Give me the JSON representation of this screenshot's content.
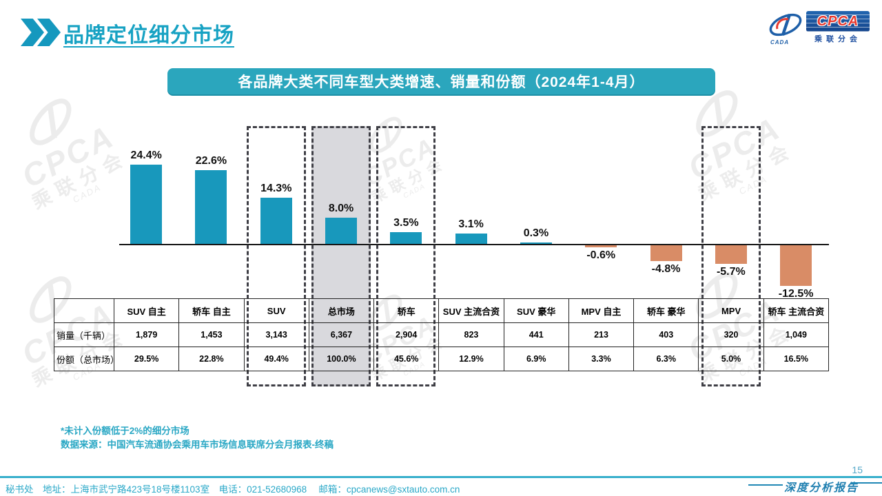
{
  "page": {
    "title": "品牌定位细分市场",
    "page_number": "15",
    "report_label": "深度分析报告",
    "footer_contact": "秘书处　地址：上海市武宁路423号18号楼1103室　电话：021-52680968 　邮箱：cpcanews@sxtauto.com.cn"
  },
  "logo": {
    "cpca": "CPCA",
    "subtitle": "乘联分会",
    "cada": "CADA"
  },
  "watermark": {
    "line1": "CPCA",
    "line2": "乘联分会",
    "line3": "CADA"
  },
  "banner": {
    "title": "各品牌大类不同车型大类增速、销量和份额（2024年1-4月）"
  },
  "notes": {
    "note1": "*未计入份额低于2%的细分市场",
    "note2": "数据来源：中国汽车流通协会乘用车市场信息联席分会月报表-终稿"
  },
  "colors": {
    "bar_positive": "#1898BC",
    "bar_negative": "#D98C66",
    "banner_teal": "#2BA6BD",
    "title_teal": "#17A2C3",
    "grey_highlight": "#D9D9DD",
    "dash_border": "#3F3F46"
  },
  "chart_data": {
    "type": "bar",
    "title": "各品牌大类不同车型大类增速、销量和份额（2024年1-4月）",
    "categories": [
      "SUV 自主",
      "轿车 自主",
      "SUV",
      "总市场",
      "轿车",
      "SUV 主流合资",
      "SUV 豪华",
      "MPV 自主",
      "轿车 豪华",
      "MPV",
      "轿车 主流合资"
    ],
    "series": [
      {
        "name": "增速(%)",
        "values": [
          24.4,
          22.6,
          14.3,
          8.0,
          3.5,
          3.1,
          0.3,
          -0.6,
          -4.8,
          -5.7,
          -12.5
        ]
      },
      {
        "name": "销量（千辆）",
        "values": [
          1879,
          1453,
          3143,
          6367,
          2904,
          823,
          441,
          213,
          403,
          320,
          1049
        ]
      },
      {
        "name": "份额（总市场）(%)",
        "values": [
          29.5,
          22.8,
          49.4,
          100.0,
          45.6,
          12.9,
          6.9,
          3.3,
          6.3,
          5.0,
          16.5
        ]
      }
    ],
    "bar_labels": [
      "24.4%",
      "22.6%",
      "14.3%",
      "8.0%",
      "3.5%",
      "3.1%",
      "0.3%",
      "-0.6%",
      "-4.8%",
      "-5.7%",
      "-12.5%"
    ],
    "highlighted_categories": [
      "SUV",
      "总市场",
      "轿车",
      "MPV"
    ],
    "shaded_category": "总市场",
    "xlabel": "",
    "ylabel": "",
    "ylim": [
      -14,
      26
    ],
    "grid": false,
    "legend": false
  },
  "table": {
    "corner": "",
    "columns": [
      "SUV 自主",
      "轿车 自主",
      "SUV",
      "总市场",
      "轿车",
      "SUV 主流合资",
      "SUV 豪华",
      "MPV 自主",
      "轿车 豪华",
      "MPV",
      "轿车 主流合资"
    ],
    "rows": [
      {
        "label": "销量（千辆）",
        "values": [
          "1,879",
          "1,453",
          "3,143",
          "6,367",
          "2,904",
          "823",
          "441",
          "213",
          "403",
          "320",
          "1,049"
        ]
      },
      {
        "label": "份额（总市场）",
        "values": [
          "29.5%",
          "22.8%",
          "49.4%",
          "100.0%",
          "45.6%",
          "12.9%",
          "6.9%",
          "3.3%",
          "6.3%",
          "5.0%",
          "16.5%"
        ]
      }
    ]
  }
}
